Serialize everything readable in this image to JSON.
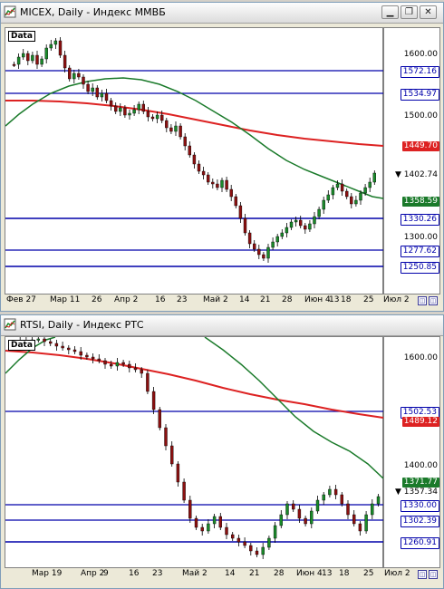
{
  "colors": {
    "blue_line": "#0000aa",
    "green_ma": "#1a7a2a",
    "red_ma": "#dd2222",
    "candle_up": "#1a8a2a",
    "candle_down": "#8b1010"
  },
  "windows": [
    {
      "title": "MICEX, Daily - Индекс ММВБ",
      "data_label": "Data",
      "x_labels": [
        "Фев 27",
        "Мар 11",
        "26",
        "Апр 2",
        "16",
        "23",
        "Май 2",
        "14",
        "21",
        "28",
        "Июн 4",
        "13",
        "18",
        "25",
        "Июл 2"
      ],
      "price_labels": [
        "1600.00",
        "1500.00",
        "1400.00",
        "1300.00"
      ],
      "badges": [
        {
          "value": "1572.16",
          "type": "line"
        },
        {
          "value": "1534.97",
          "type": "line"
        },
        {
          "value": "1449.70",
          "type": "red"
        },
        {
          "value": "1402.74",
          "type": "current"
        },
        {
          "value": "1358.59",
          "type": "green"
        },
        {
          "value": "1330.26",
          "type": "line"
        },
        {
          "value": "1277.62",
          "type": "line"
        },
        {
          "value": "1250.85",
          "type": "line"
        }
      ]
    },
    {
      "title": "RTSI, Daily - Индекс РТС",
      "data_label": "Data",
      "x_labels": [
        "Мар 19",
        "Апр 2",
        "9",
        "16",
        "23",
        "Май 2",
        "14",
        "21",
        "28",
        "Июн 4",
        "13",
        "18",
        "25",
        "Июл 2"
      ],
      "price_labels": [
        "1600.00",
        "1400.00"
      ],
      "badges": [
        {
          "value": "1502.53",
          "type": "line"
        },
        {
          "value": "1489.12",
          "type": "red"
        },
        {
          "value": "1371.77",
          "type": "green"
        },
        {
          "value": "1357.34",
          "type": "current"
        },
        {
          "value": "1330.00",
          "type": "line"
        },
        {
          "value": "1302.39",
          "type": "line"
        },
        {
          "value": "1260.91",
          "type": "line"
        }
      ]
    }
  ]
}
